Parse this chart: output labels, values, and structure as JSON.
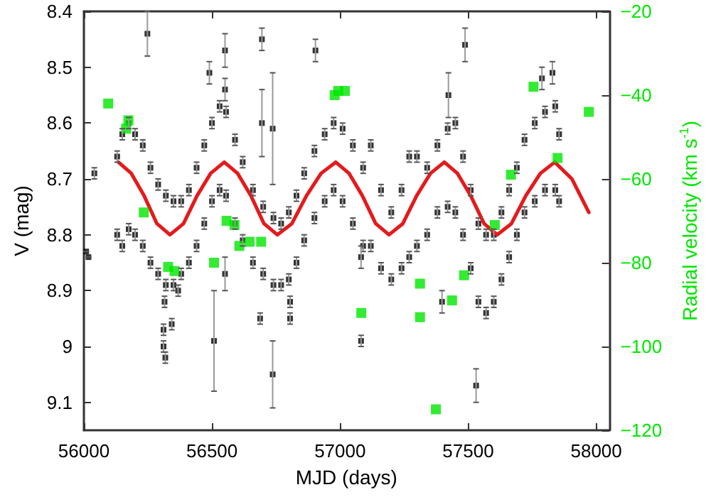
{
  "chart_data": {
    "type": "scatter",
    "xlabel": "MJD (days)",
    "ylabel": "V (mag)",
    "y2label": "Radial velocity (km s$^{-1}$)",
    "xlim": [
      56000,
      58050
    ],
    "xticks": [
      56000,
      56500,
      57000,
      57500,
      58000
    ],
    "ylim": [
      9.15,
      8.4
    ],
    "yticks": [
      8.4,
      8.5,
      8.6,
      8.7,
      8.8,
      8.9,
      9,
      9.1
    ],
    "y2lim": [
      -120,
      -20
    ],
    "y2ticks": [
      -120,
      -100,
      -80,
      -60,
      -40,
      -20
    ],
    "grid": false,
    "series": [
      {
        "color": "#000000",
        "marker": "square",
        "x": [
          56130,
          56130,
          56150,
          56150,
          56175,
          56175,
          56200,
          56200,
          56230,
          56230,
          56260,
          56260,
          56290,
          56290,
          56320,
          56320,
          56350,
          56350,
          56380,
          56380,
          56410,
          56410,
          56440,
          56440,
          56470,
          56470,
          56500,
          56500,
          56530,
          56530,
          56555,
          56555,
          56590,
          56590,
          56620,
          56620,
          56660,
          56660,
          56700,
          56700,
          56740,
          56740,
          56770,
          56770,
          56800,
          56800,
          56830,
          56830,
          56860,
          56860,
          56900,
          56900,
          56940,
          56940,
          56975,
          56975,
          57010,
          57010,
          57050,
          57050,
          57090,
          57090,
          57120,
          57120,
          57160,
          57160,
          57200,
          57200,
          57240,
          57240,
          57270,
          57270,
          57300,
          57300,
          57340,
          57340,
          57380,
          57380,
          57420,
          57420,
          57450,
          57450,
          57480,
          57480,
          57510,
          57510,
          57540,
          57540,
          57570,
          57570,
          57600,
          57600,
          57630,
          57630,
          57660,
          57660,
          57690,
          57690,
          57720,
          57720,
          57760,
          57760,
          57800,
          57800,
          57840,
          57840,
          57855,
          57855,
          56009,
          56018,
          56041,
          56248,
          56490,
          56551,
          56551,
          56695,
          56695,
          56737,
          56904,
          57488,
          57423,
          57829,
          57788,
          56508,
          56737,
          56311,
          56318,
          56311,
          56343,
          56315,
          56368,
          56688,
          56805,
          56805,
          57082,
          57082,
          56551,
          57531,
          57398
        ],
        "values": [
          8.66,
          8.8,
          8.62,
          8.82,
          8.6,
          8.79,
          8.62,
          8.8,
          8.64,
          8.82,
          8.68,
          8.85,
          8.71,
          8.87,
          8.73,
          8.89,
          8.74,
          8.89,
          8.74,
          8.87,
          8.72,
          8.85,
          8.68,
          8.82,
          8.64,
          8.78,
          8.6,
          8.74,
          8.57,
          8.72,
          8.58,
          8.73,
          8.63,
          8.78,
          8.67,
          8.81,
          8.72,
          8.85,
          8.75,
          8.87,
          8.77,
          8.89,
          8.78,
          8.89,
          8.76,
          8.88,
          8.73,
          8.85,
          8.69,
          8.81,
          8.65,
          8.77,
          8.62,
          8.74,
          8.6,
          8.72,
          8.61,
          8.74,
          8.64,
          8.78,
          8.68,
          8.82,
          8.64,
          8.82,
          8.72,
          8.86,
          8.76,
          8.88,
          8.72,
          8.86,
          8.66,
          8.84,
          8.66,
          8.82,
          8.68,
          8.8,
          8.64,
          8.76,
          8.61,
          8.75,
          8.6,
          8.76,
          8.66,
          8.8,
          8.72,
          8.86,
          8.78,
          8.92,
          8.8,
          8.94,
          8.8,
          8.92,
          8.76,
          8.88,
          8.72,
          8.84,
          8.68,
          8.8,
          8.63,
          8.76,
          8.6,
          8.74,
          8.58,
          8.72,
          8.57,
          8.72,
          8.62,
          8.74,
          8.83,
          8.84,
          8.69,
          8.44,
          8.51,
          8.47,
          8.54,
          8.45,
          8.6,
          8.61,
          8.47,
          8.46,
          8.55,
          8.51,
          8.52,
          8.99,
          9.05,
          9.0,
          9.02,
          8.97,
          8.96,
          8.92,
          8.9,
          8.95,
          8.95,
          8.92,
          8.99,
          8.84,
          8.87,
          9.07,
          8.92
        ],
        "errors": [
          0.01,
          0.01,
          0.01,
          0.01,
          0.01,
          0.01,
          0.01,
          0.01,
          0.01,
          0.01,
          0.01,
          0.01,
          0.01,
          0.01,
          0.01,
          0.01,
          0.01,
          0.01,
          0.01,
          0.01,
          0.01,
          0.01,
          0.01,
          0.01,
          0.01,
          0.01,
          0.01,
          0.01,
          0.01,
          0.01,
          0.01,
          0.01,
          0.01,
          0.01,
          0.01,
          0.01,
          0.01,
          0.01,
          0.01,
          0.01,
          0.01,
          0.01,
          0.01,
          0.01,
          0.01,
          0.01,
          0.01,
          0.01,
          0.01,
          0.01,
          0.01,
          0.01,
          0.01,
          0.01,
          0.01,
          0.01,
          0.01,
          0.01,
          0.01,
          0.01,
          0.01,
          0.01,
          0.01,
          0.01,
          0.01,
          0.01,
          0.01,
          0.01,
          0.01,
          0.01,
          0.01,
          0.01,
          0.01,
          0.01,
          0.01,
          0.01,
          0.01,
          0.01,
          0.01,
          0.01,
          0.01,
          0.01,
          0.01,
          0.01,
          0.01,
          0.01,
          0.01,
          0.01,
          0.01,
          0.01,
          0.01,
          0.01,
          0.01,
          0.01,
          0.01,
          0.01,
          0.01,
          0.01,
          0.01,
          0.01,
          0.01,
          0.01,
          0.01,
          0.01,
          0.01,
          0.01,
          0.01,
          0.01,
          null,
          null,
          0.01,
          0.04,
          0.02,
          0.03,
          0.02,
          0.02,
          0.06,
          0.1,
          0.02,
          0.03,
          0.04,
          0.02,
          0.02,
          0.09,
          0.06,
          0.01,
          0.01,
          0.01,
          0.01,
          0.01,
          0.01,
          0.01,
          0.01,
          0.01,
          0.01,
          0.02,
          0.03,
          0.03,
          0.02
        ]
      },
      {
        "type": "line",
        "color": "#e41a1c",
        "marker": "none",
        "line_style": "solid",
        "x": [
          56135,
          56185,
          56235,
          56285,
          56336,
          56389,
          56442,
          56495,
          56548,
          56600,
          56652,
          56703,
          56755,
          56812,
          56869,
          56926,
          56983,
          57035,
          57087,
          57139,
          57191,
          57245,
          57299,
          57353,
          57407,
          57458,
          57510,
          57562,
          57613,
          57669,
          57725,
          57782,
          57838,
          57905,
          57971
        ],
        "values": [
          8.67,
          8.69,
          8.73,
          8.78,
          8.8,
          8.78,
          8.73,
          8.69,
          8.67,
          8.69,
          8.73,
          8.78,
          8.8,
          8.78,
          8.73,
          8.69,
          8.67,
          8.69,
          8.73,
          8.78,
          8.8,
          8.78,
          8.73,
          8.69,
          8.67,
          8.69,
          8.73,
          8.78,
          8.8,
          8.78,
          8.73,
          8.69,
          8.67,
          8.7,
          8.76
        ]
      },
      {
        "type": "scatter",
        "color": "#00e600",
        "marker": "square",
        "axis": "y2",
        "x": [
          56095,
          56174,
          56165,
          56234,
          56979,
          56993,
          57019,
          56557,
          56588,
          56647,
          56692,
          56607,
          56508,
          56329,
          56354,
          57083,
          57755,
          57971,
          57849,
          57667,
          57604,
          57312,
          57312,
          57437,
          57484,
          57374
        ],
        "values": [
          -42,
          -46,
          -48,
          -68,
          -40,
          -39,
          -39,
          -70,
          -71,
          -75,
          -75,
          -76,
          -80,
          -81,
          -82,
          -92,
          -38,
          -44,
          -55,
          -59,
          -71,
          -85,
          -93,
          -89,
          -83,
          -115
        ]
      }
    ]
  }
}
